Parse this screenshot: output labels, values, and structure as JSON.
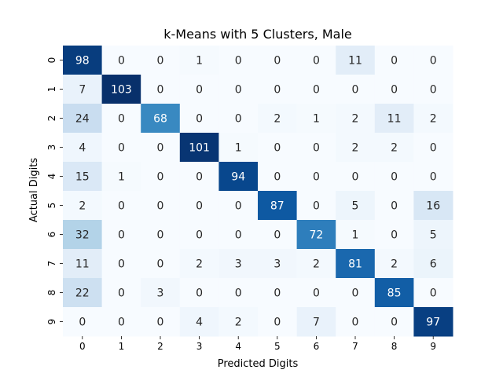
{
  "chart_data": {
    "type": "heatmap",
    "title": "k-Means with 5 Clusters, Male",
    "xlabel": "Predicted Digits",
    "ylabel": "Actual Digits",
    "x_categories": [
      "0",
      "1",
      "2",
      "3",
      "4",
      "5",
      "6",
      "7",
      "8",
      "9"
    ],
    "y_categories": [
      "0",
      "1",
      "2",
      "3",
      "4",
      "5",
      "6",
      "7",
      "8",
      "9"
    ],
    "values": [
      [
        98,
        0,
        0,
        1,
        0,
        0,
        0,
        11,
        0,
        0
      ],
      [
        7,
        103,
        0,
        0,
        0,
        0,
        0,
        0,
        0,
        0
      ],
      [
        24,
        0,
        68,
        0,
        0,
        2,
        1,
        2,
        11,
        2
      ],
      [
        4,
        0,
        0,
        101,
        1,
        0,
        0,
        2,
        2,
        0
      ],
      [
        15,
        1,
        0,
        0,
        94,
        0,
        0,
        0,
        0,
        0
      ],
      [
        2,
        0,
        0,
        0,
        0,
        87,
        0,
        5,
        0,
        16
      ],
      [
        32,
        0,
        0,
        0,
        0,
        0,
        72,
        1,
        0,
        5
      ],
      [
        11,
        0,
        0,
        2,
        3,
        3,
        2,
        81,
        2,
        6
      ],
      [
        22,
        0,
        3,
        0,
        0,
        0,
        0,
        0,
        85,
        0
      ],
      [
        0,
        0,
        0,
        4,
        2,
        0,
        7,
        0,
        0,
        97
      ]
    ],
    "colormap": "Blues",
    "vmin": 0,
    "vmax": 103,
    "colorbar": false
  }
}
